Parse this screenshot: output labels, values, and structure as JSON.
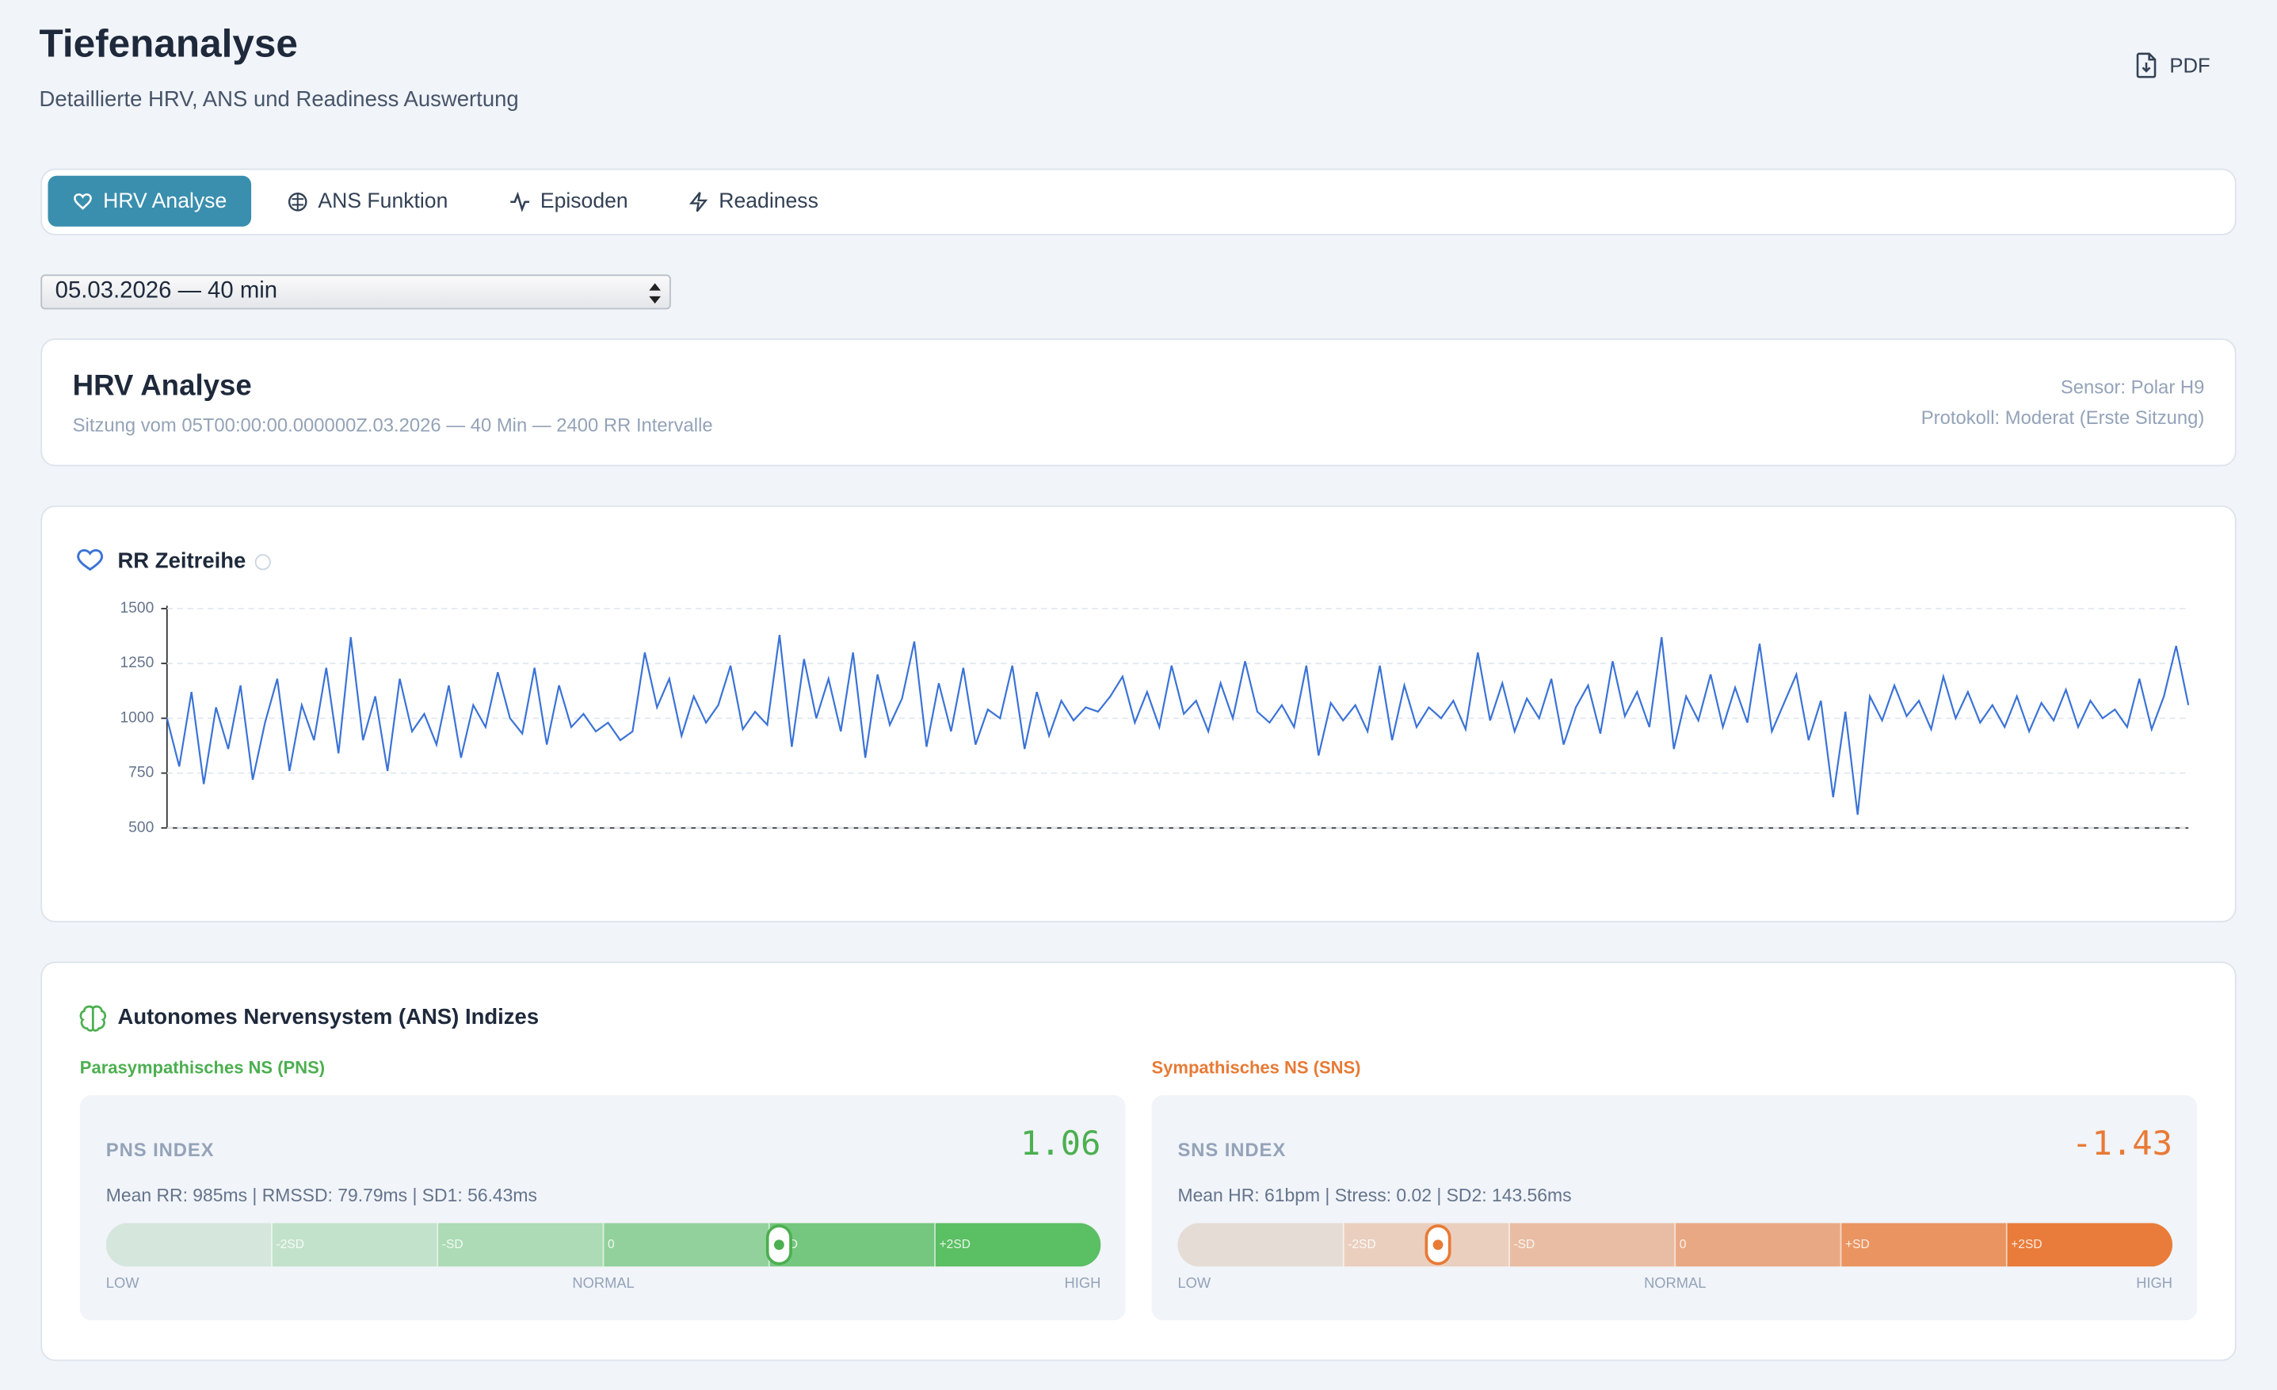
{
  "header": {
    "title": "Tiefenanalyse",
    "subtitle": "Detaillierte HRV, ANS und Readiness Auswertung",
    "pdf_button": "PDF"
  },
  "tabs": [
    "HRV Analyse",
    "ANS Funktion",
    "Episoden",
    "Readiness"
  ],
  "session_select": "05.03.2026 — 40 min",
  "hrv_card": {
    "title": "HRV Analyse",
    "subtitle": "Sitzung vom 05T00:00:00.000000Z.03.2026 — 40 Min — 2400 RR Intervalle",
    "sensor": "Sensor: Polar H9",
    "protocol": "Protokoll: Moderat (Erste Sitzung)"
  },
  "chart_data": {
    "type": "line",
    "title": "RR Zeitreihe",
    "color": "#3b73d6",
    "ylim": [
      500,
      1500
    ],
    "yticks": [
      500,
      750,
      1000,
      1250,
      1500
    ],
    "grid": true,
    "values": [
      1000,
      780,
      1120,
      700,
      1050,
      860,
      1150,
      720,
      980,
      1180,
      760,
      1060,
      900,
      1230,
      840,
      1370,
      900,
      1100,
      760,
      1180,
      940,
      1020,
      880,
      1150,
      820,
      1060,
      960,
      1210,
      1000,
      930,
      1230,
      880,
      1150,
      960,
      1020,
      940,
      980,
      900,
      940,
      1300,
      1050,
      1180,
      920,
      1100,
      980,
      1060,
      1240,
      950,
      1030,
      970,
      1380,
      870,
      1270,
      1000,
      1180,
      940,
      1300,
      820,
      1200,
      970,
      1090,
      1350,
      870,
      1160,
      940,
      1230,
      880,
      1040,
      1000,
      1240,
      860,
      1120,
      920,
      1080,
      990,
      1050,
      1030,
      1100,
      1190,
      980,
      1120,
      960,
      1240,
      1020,
      1080,
      940,
      1160,
      1000,
      1260,
      1030,
      980,
      1060,
      960,
      1240,
      830,
      1070,
      990,
      1060,
      940,
      1240,
      900,
      1150,
      960,
      1050,
      1000,
      1080,
      950,
      1300,
      990,
      1160,
      940,
      1090,
      1000,
      1180,
      880,
      1050,
      1150,
      930,
      1260,
      1010,
      1120,
      960,
      1370,
      860,
      1100,
      990,
      1200,
      960,
      1140,
      980,
      1340,
      940,
      1070,
      1200,
      900,
      1080,
      640,
      1030,
      560,
      1100,
      990,
      1150,
      1010,
      1080,
      950,
      1190,
      1000,
      1120,
      980,
      1060,
      960,
      1100,
      940,
      1070,
      990,
      1130,
      960,
      1080,
      1000,
      1040,
      960,
      1180,
      950,
      1100,
      1330,
      1060
    ]
  },
  "ans": {
    "title": "Autonomes Nervensystem (ANS) Indizes",
    "scale_labels": [
      "LOW",
      "NORMAL",
      "HIGH"
    ],
    "gauges": [
      {
        "heading": "Parasympathisches NS (PNS)",
        "label": "PNS INDEX",
        "value": 1.06,
        "details": "Mean RR: 985ms | RMSSD: 79.79ms | SD1: 56.43ms",
        "xlim": [
          -3,
          3
        ],
        "xticks": [
          {
            "value": -2,
            "label": "-2SD"
          },
          {
            "value": -1,
            "label": "-SD"
          },
          {
            "value": 0,
            "label": "0"
          },
          {
            "value": 1,
            "label": "+SD"
          },
          {
            "value": 2,
            "label": "+2SD"
          }
        ],
        "color": "#4caf50",
        "segment_colors": [
          "#d5e6dc",
          "#c3e2cb",
          "#acdbb5",
          "#93d19c",
          "#75c77f",
          "#5bbf63"
        ]
      },
      {
        "heading": "Sympathisches NS (SNS)",
        "label": "SNS INDEX",
        "value": -1.43,
        "details": "Mean HR: 61bpm | Stress: 0.02 | SD2: 143.56ms",
        "xlim": [
          -3,
          3
        ],
        "xticks": [
          {
            "value": -2,
            "label": "-2SD"
          },
          {
            "value": -1,
            "label": "-SD"
          },
          {
            "value": 0,
            "label": "0"
          },
          {
            "value": 1,
            "label": "+SD"
          },
          {
            "value": 2,
            "label": "+2SD"
          }
        ],
        "color": "#e87a35",
        "segment_colors": [
          "#e5dcd6",
          "#eacfbf",
          "#e9bda3",
          "#e9a884",
          "#ea9461",
          "#e97c3a"
        ]
      }
    ]
  }
}
